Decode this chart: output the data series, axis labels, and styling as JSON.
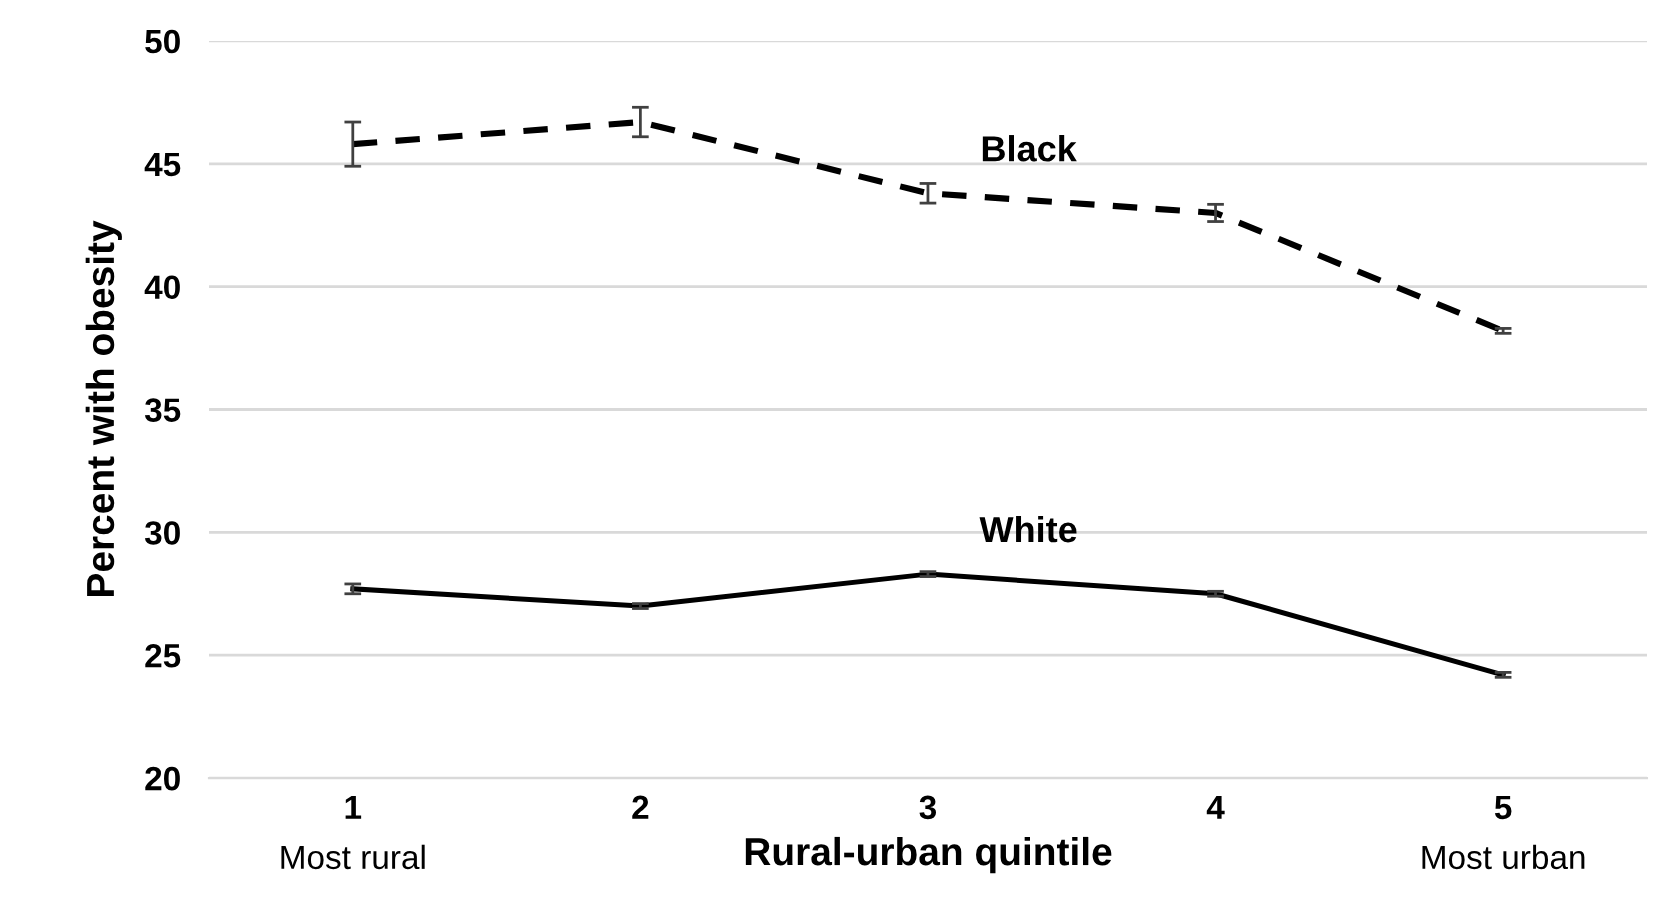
{
  "chart_data": {
    "type": "line",
    "xlabel": "Rural-urban quintile",
    "ylabel": "Percent with obesity",
    "categories": [
      "1",
      "2",
      "3",
      "4",
      "5"
    ],
    "series": [
      {
        "name": "Black",
        "color": "#000000",
        "line_style": "dashed",
        "values": [
          45.8,
          46.7,
          43.8,
          43.0,
          38.2
        ],
        "errors": [
          0.9,
          0.6,
          0.4,
          0.35,
          0.1
        ]
      },
      {
        "name": "White",
        "color": "#000000",
        "line_style": "solid",
        "values": [
          27.7,
          27.0,
          28.3,
          27.5,
          24.2
        ],
        "errors": [
          0.2,
          0.1,
          0.1,
          0.1,
          0.1
        ]
      }
    ],
    "annotations": [
      "Most rural",
      "Most urban"
    ],
    "ylim": [
      20,
      50
    ],
    "yticks": [
      20,
      25,
      30,
      35,
      40,
      45,
      50
    ],
    "grid": "y",
    "legend": false,
    "marker": "none"
  }
}
